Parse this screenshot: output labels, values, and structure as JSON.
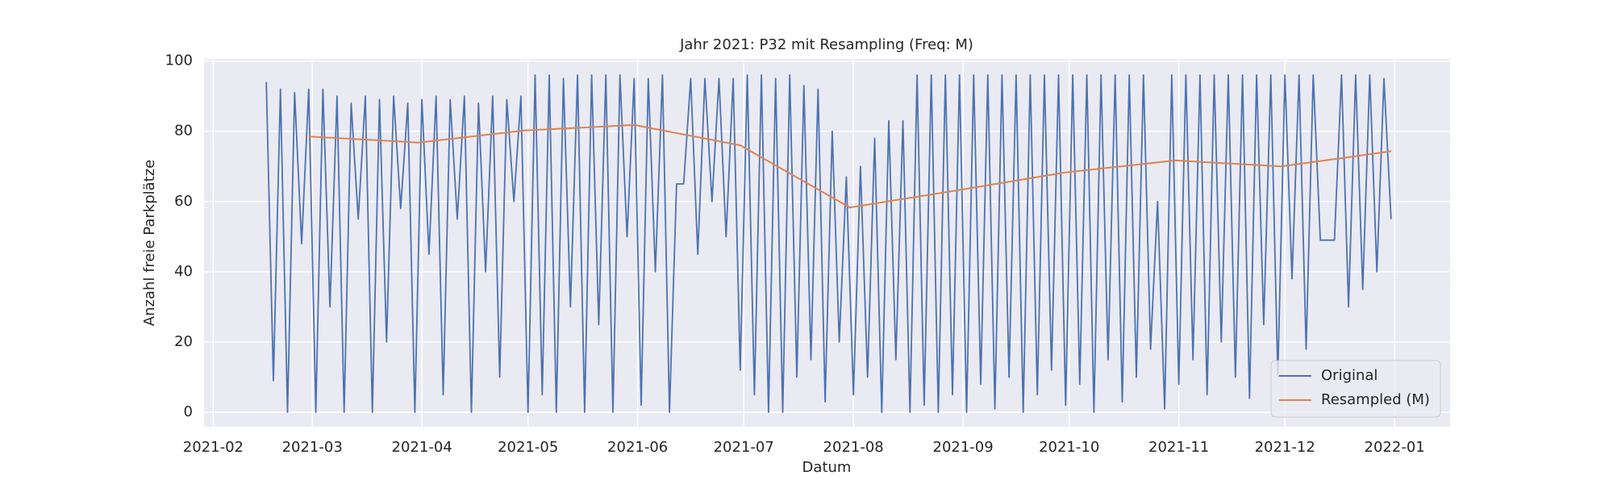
{
  "chart_data": {
    "type": "line",
    "title": "Jahr 2021: P32 mit Resampling (Freq: M)",
    "xlabel": "Datum",
    "ylabel": "Anzahl freie Parkplätze",
    "xlim": [
      28.4,
      380.7
    ],
    "xticks": [
      {
        "value": 31,
        "label": "2021-02"
      },
      {
        "value": 59,
        "label": "2021-03"
      },
      {
        "value": 90,
        "label": "2021-04"
      },
      {
        "value": 120,
        "label": "2021-05"
      },
      {
        "value": 151,
        "label": "2021-06"
      },
      {
        "value": 181,
        "label": "2021-07"
      },
      {
        "value": 212,
        "label": "2021-08"
      },
      {
        "value": 243,
        "label": "2021-09"
      },
      {
        "value": 273,
        "label": "2021-10"
      },
      {
        "value": 304,
        "label": "2021-11"
      },
      {
        "value": 334,
        "label": "2021-12"
      },
      {
        "value": 365,
        "label": "2022-01"
      }
    ],
    "ylim": [
      -4.1,
      100.6
    ],
    "yticks": [
      0,
      20,
      40,
      60,
      80,
      100
    ],
    "grid": true,
    "legend": "lower right",
    "series": [
      {
        "name": "Original",
        "color": "#4c72b0",
        "x": [
          46,
          48,
          50,
          52,
          54,
          56,
          58,
          60,
          62,
          64,
          66,
          68,
          70,
          72,
          74,
          76,
          78,
          80,
          82,
          84,
          86,
          88,
          90,
          92,
          94,
          96,
          98,
          100,
          102,
          104,
          106,
          108,
          110,
          112,
          114,
          116,
          118,
          120,
          122,
          124,
          126,
          128,
          130,
          132,
          134,
          136,
          138,
          140,
          142,
          144,
          146,
          148,
          150,
          152,
          154,
          156,
          158,
          160,
          162,
          164,
          166,
          168,
          170,
          172,
          174,
          176,
          178,
          180,
          182,
          184,
          186,
          188,
          190,
          192,
          194,
          196,
          198,
          200,
          202,
          204,
          206,
          208,
          210,
          212,
          214,
          216,
          218,
          220,
          222,
          224,
          226,
          228,
          230,
          232,
          234,
          236,
          238,
          240,
          242,
          244,
          246,
          248,
          250,
          252,
          254,
          256,
          258,
          260,
          262,
          264,
          266,
          268,
          270,
          272,
          274,
          276,
          278,
          280,
          282,
          284,
          286,
          288,
          290,
          292,
          294,
          296,
          298,
          300,
          302,
          304,
          306,
          308,
          310,
          312,
          314,
          316,
          318,
          320,
          322,
          324,
          326,
          328,
          330,
          332,
          334,
          336,
          338,
          340,
          342,
          344,
          346,
          348,
          350,
          352,
          354,
          356,
          358,
          360,
          362,
          364
        ],
        "values": [
          94,
          9,
          92,
          0,
          91,
          48,
          92,
          0,
          92,
          30,
          90,
          0,
          88,
          55,
          90,
          0,
          89,
          20,
          90,
          58,
          88,
          0,
          89,
          45,
          90,
          5,
          89,
          55,
          90,
          0,
          88,
          40,
          90,
          10,
          89,
          60,
          90,
          0,
          96,
          5,
          96,
          0,
          95,
          30,
          96,
          0,
          96,
          25,
          96,
          0,
          96,
          50,
          95,
          2,
          95,
          40,
          96,
          0,
          65,
          65,
          95,
          45,
          95,
          60,
          95,
          50,
          95,
          12,
          96,
          5,
          96,
          0,
          95,
          0,
          96,
          10,
          93,
          15,
          92,
          3,
          80,
          20,
          67,
          5,
          70,
          10,
          78,
          0,
          83,
          15,
          83,
          0,
          96,
          2,
          96,
          0,
          96,
          5,
          96,
          0,
          96,
          8,
          96,
          1,
          96,
          10,
          96,
          0,
          96,
          5,
          96,
          12,
          96,
          2,
          96,
          8,
          96,
          0,
          96,
          15,
          96,
          3,
          96,
          10,
          96,
          18,
          60,
          1,
          96,
          8,
          96,
          15,
          96,
          5,
          96,
          20,
          96,
          10,
          96,
          4,
          96,
          25,
          96,
          10,
          96,
          38,
          96,
          18,
          96,
          49,
          49,
          49,
          96,
          30,
          96,
          35,
          96,
          40,
          95,
          55
        ]
      },
      {
        "name": "Resampled (M)",
        "color": "#dd8452",
        "x": [
          58,
          89,
          119,
          150,
          180,
          211,
          242,
          272,
          303,
          333,
          364
        ],
        "values": [
          78.5,
          76.8,
          80.2,
          81.8,
          76,
          58.3,
          63.3,
          68.3,
          71.7,
          70,
          74.3
        ]
      }
    ]
  }
}
